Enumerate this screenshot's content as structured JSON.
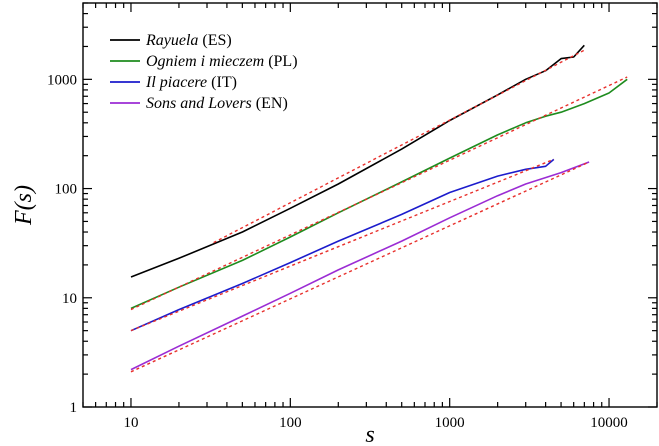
{
  "chart_data": {
    "type": "line",
    "x_scale": "log",
    "y_scale": "log",
    "xlabel": "s",
    "ylabel": "F(s)",
    "xlim": [
      5,
      20000
    ],
    "ylim": [
      1,
      5000
    ],
    "x_ticks": [
      10,
      100,
      1000,
      10000
    ],
    "x_tick_labels": [
      "10",
      "100",
      "1000",
      "10000"
    ],
    "y_ticks": [
      1,
      10,
      100,
      1000
    ],
    "y_tick_labels": [
      "1",
      "10",
      "100",
      "1000"
    ],
    "legend_position": "top-left",
    "fit_line_color": "#e8302c",
    "series": [
      {
        "name": "Rayuela",
        "lang": "(ES)",
        "color": "#000000",
        "x": [
          10,
          20,
          50,
          100,
          200,
          500,
          1000,
          2000,
          3000,
          4000,
          5000,
          6000,
          7000
        ],
        "y": [
          15.5,
          23,
          40,
          66,
          110,
          230,
          420,
          720,
          1000,
          1200,
          1550,
          1600,
          2050
        ],
        "fit_x": [
          33,
          7000
        ],
        "fit_y": [
          32,
          1850
        ]
      },
      {
        "name": "Ogniem i mieczem",
        "lang": "(PL)",
        "color": "#1e8c1e",
        "x": [
          10,
          20,
          50,
          100,
          200,
          500,
          1000,
          2000,
          3000,
          4000,
          5000,
          7000,
          10000,
          13000
        ],
        "y": [
          8,
          12.5,
          22,
          36,
          60,
          115,
          190,
          310,
          400,
          460,
          500,
          600,
          750,
          1000
        ],
        "fit_x": [
          10,
          13000
        ],
        "fit_y": [
          7.8,
          1050
        ]
      },
      {
        "name": "Il piacere",
        "lang": "(IT)",
        "color": "#1c1ccc",
        "x": [
          10,
          20,
          50,
          100,
          200,
          500,
          1000,
          2000,
          3000,
          4000,
          4500
        ],
        "y": [
          5,
          7.8,
          13.5,
          21,
          33,
          58,
          92,
          130,
          150,
          160,
          185
        ],
        "fit_x": [
          10,
          4500
        ],
        "fit_y": [
          5,
          185
        ]
      },
      {
        "name": "Sons and Lovers",
        "lang": "(EN)",
        "color": "#9b2cd4",
        "x": [
          10,
          20,
          50,
          100,
          200,
          500,
          1000,
          2000,
          3000,
          5000,
          7500
        ],
        "y": [
          2.2,
          3.6,
          6.8,
          11,
          18,
          33,
          54,
          86,
          110,
          140,
          175
        ],
        "fit_x": [
          10,
          7500
        ],
        "fit_y": [
          2.1,
          175
        ]
      }
    ]
  }
}
